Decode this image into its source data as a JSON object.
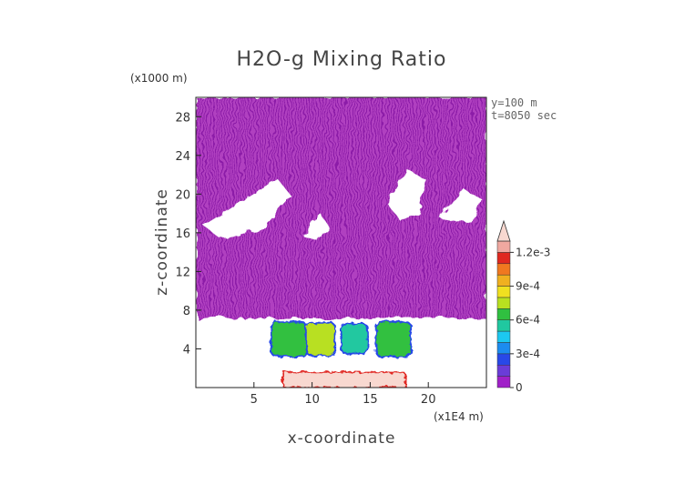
{
  "chart_data": {
    "type": "heatmap",
    "title": "H2O-g Mixing Ratio",
    "xlabel": "x-coordinate",
    "ylabel": "z-coordinate",
    "x_unit": "(x1E4 m)",
    "y_unit": "(x1000 m)",
    "xlim": [
      0,
      25
    ],
    "ylim": [
      0,
      30
    ],
    "x_ticks": [
      5,
      10,
      15,
      20
    ],
    "y_ticks": [
      4,
      8,
      12,
      16,
      20,
      24,
      28
    ],
    "annotations": [
      "y=100 m",
      "t=8050 sec"
    ],
    "colorbar": {
      "min": 0,
      "max": 0.0013,
      "tick_values": [
        0,
        0.0003,
        0.0006,
        0.0009,
        0.0012
      ],
      "tick_labels": [
        "0",
        "3e-4",
        "6e-4",
        "9e-4",
        "1.2e-3"
      ],
      "extend": "max",
      "levels": [
        {
          "from": 0.0,
          "to": 0.0001,
          "color": "#a020c8"
        },
        {
          "from": 0.0001,
          "to": 0.0002,
          "color": "#6a3cd8"
        },
        {
          "from": 0.0002,
          "to": 0.0003,
          "color": "#2848e8"
        },
        {
          "from": 0.0003,
          "to": 0.0004,
          "color": "#1c8cf0"
        },
        {
          "from": 0.0004,
          "to": 0.0005,
          "color": "#1cc8f0"
        },
        {
          "from": 0.0005,
          "to": 0.0006,
          "color": "#20c8a0"
        },
        {
          "from": 0.0006,
          "to": 0.0007,
          "color": "#30c040"
        },
        {
          "from": 0.0007,
          "to": 0.0008,
          "color": "#b8e020"
        },
        {
          "from": 0.0008,
          "to": 0.0009,
          "color": "#f0e020"
        },
        {
          "from": 0.0009,
          "to": 0.001,
          "color": "#f0b020"
        },
        {
          "from": 0.001,
          "to": 0.0011,
          "color": "#f07820"
        },
        {
          "from": 0.0011,
          "to": 0.0012,
          "color": "#e02820"
        },
        {
          "from": 0.0012,
          "to": 0.0013,
          "color": "#f0a8a0"
        },
        {
          "from": 0.0013,
          "to": null,
          "color": "#f8d8d0"
        }
      ]
    },
    "regions": [
      {
        "name": "upper-moist-layer",
        "x": [
          0,
          25
        ],
        "z": [
          6.5,
          30
        ],
        "value": 5e-05
      },
      {
        "name": "moist-core-1",
        "x": [
          6.5,
          9.5
        ],
        "z": [
          3.2,
          6.8
        ],
        "value": 0.0006
      },
      {
        "name": "moist-core-2",
        "x": [
          9.5,
          12.0
        ],
        "z": [
          3.3,
          6.7
        ],
        "value": 0.0007
      },
      {
        "name": "moist-core-3",
        "x": [
          12.5,
          14.8
        ],
        "z": [
          3.5,
          6.6
        ],
        "value": 0.0005
      },
      {
        "name": "moist-core-4",
        "x": [
          15.5,
          18.5
        ],
        "z": [
          3.2,
          6.8
        ],
        "value": 0.0006
      },
      {
        "name": "surface-layer",
        "x": [
          7.5,
          18.0
        ],
        "z": [
          0,
          1.6
        ],
        "value": 0.0013
      }
    ]
  }
}
